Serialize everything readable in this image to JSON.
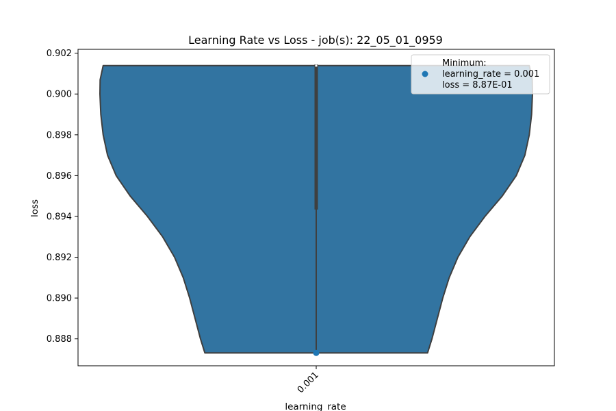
{
  "chart_data": {
    "type": "violin",
    "title": "Learning Rate vs Loss - job(s): 22_05_01_0959",
    "xlabel": "learning_rate",
    "ylabel": "loss",
    "categories": [
      "0.001"
    ],
    "ylim": [
      0.88668,
      0.90219
    ],
    "yticks": [
      "0.888",
      "0.890",
      "0.892",
      "0.894",
      "0.896",
      "0.898",
      "0.900",
      "0.902"
    ],
    "ytick_values": [
      0.888,
      0.89,
      0.892,
      0.894,
      0.896,
      0.898,
      0.9,
      0.902
    ],
    "violin": {
      "category": "0.001",
      "color": "#3274a1",
      "edge_color": "#3f3f3f",
      "y_min": 0.88731,
      "y_max": 0.90139,
      "box_q1": 0.89434,
      "box_q3": 0.90145,
      "median": 0.90139,
      "density_profile": [
        {
          "y": 0.88731,
          "w": 0.515
        },
        {
          "y": 0.888,
          "w": 0.535
        },
        {
          "y": 0.889,
          "w": 0.56
        },
        {
          "y": 0.89,
          "w": 0.585
        },
        {
          "y": 0.891,
          "w": 0.615
        },
        {
          "y": 0.892,
          "w": 0.655
        },
        {
          "y": 0.893,
          "w": 0.71
        },
        {
          "y": 0.894,
          "w": 0.78
        },
        {
          "y": 0.895,
          "w": 0.86
        },
        {
          "y": 0.896,
          "w": 0.925
        },
        {
          "y": 0.897,
          "w": 0.965
        },
        {
          "y": 0.898,
          "w": 0.985
        },
        {
          "y": 0.899,
          "w": 0.996
        },
        {
          "y": 0.9,
          "w": 1.0
        },
        {
          "y": 0.9007,
          "w": 0.999
        },
        {
          "y": 0.90139,
          "w": 0.985
        }
      ]
    },
    "minimum_point": {
      "x": "0.001",
      "y": 0.88731,
      "color": "#1f77b4"
    },
    "legend": {
      "placement": "top-right",
      "title": "Minimum:",
      "line1": "learning_rate = 0.001",
      "line2": "loss = 8.87E-01"
    },
    "grid": false
  }
}
